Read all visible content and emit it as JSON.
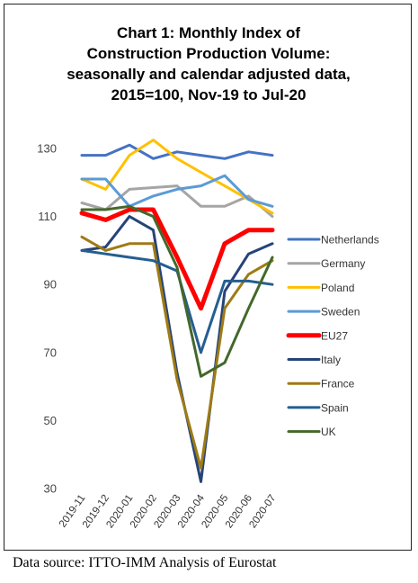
{
  "source": "Data source: ITTO-IMM Analysis of Eurostat",
  "chart_data": {
    "type": "line",
    "title_lines": [
      "Chart 1: Monthly Index of",
      "Construction Production Volume:",
      "seasonally and calendar adjusted data,",
      "2015=100, Nov-19 to Jul-20"
    ],
    "categories": [
      "2019-11",
      "2019-12",
      "2020-01",
      "2020-02",
      "2020-03",
      "2020-04",
      "2020-05",
      "2020-06",
      "2020-07"
    ],
    "ylim": [
      30,
      130
    ],
    "yticks": [
      30,
      50,
      70,
      90,
      110,
      130
    ],
    "grid": false,
    "legend": "right",
    "series": [
      {
        "name": "Netherlands",
        "color": "#4472C4",
        "width": 3,
        "values": [
          128,
          128,
          131,
          127,
          129,
          128,
          127,
          129,
          128
        ]
      },
      {
        "name": "Germany",
        "color": "#A5A5A5",
        "width": 3,
        "values": [
          114,
          112,
          118,
          118.5,
          119,
          113,
          113,
          116,
          110
        ]
      },
      {
        "name": "Poland",
        "color": "#FFC000",
        "width": 3,
        "values": [
          121,
          118,
          128,
          132.5,
          127,
          123,
          119,
          115,
          111
        ]
      },
      {
        "name": "Sweden",
        "color": "#5B9BD5",
        "width": 3,
        "values": [
          121,
          121,
          113,
          116,
          118,
          119,
          122,
          115,
          113
        ]
      },
      {
        "name": "EU27",
        "color": "#FF0000",
        "width": 5,
        "values": [
          111,
          109,
          112,
          112,
          98,
          83,
          102,
          106,
          106
        ]
      },
      {
        "name": "Italy",
        "color": "#264478",
        "width": 3,
        "values": [
          100,
          101,
          110,
          106,
          64,
          32,
          88,
          99,
          102
        ]
      },
      {
        "name": "France",
        "color": "#9E7B14",
        "width": 3,
        "values": [
          104,
          100,
          102,
          102,
          62,
          36,
          83,
          93,
          97
        ]
      },
      {
        "name": "Spain",
        "color": "#255E91",
        "width": 3,
        "values": [
          100,
          99,
          98,
          97,
          94,
          70,
          91,
          91,
          90
        ]
      },
      {
        "name": "UK",
        "color": "#43682B",
        "width": 3,
        "values": [
          112,
          112,
          113,
          110,
          95,
          63,
          67,
          83,
          98
        ]
      }
    ]
  }
}
